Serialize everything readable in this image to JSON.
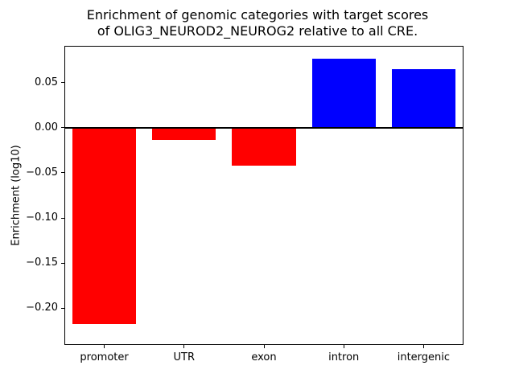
{
  "chart_data": {
    "type": "bar",
    "title": "Enrichment of genomic categories with target scores\nof OLIG3_NEUROD2_NEUROG2 relative to all CRE.",
    "title_lines": [
      "Enrichment of genomic categories with target scores",
      "of OLIG3_NEUROD2_NEUROG2 relative to all CRE."
    ],
    "xlabel": "",
    "ylabel": "Enrichment (log10)",
    "categories": [
      "promoter",
      "UTR",
      "exon",
      "intron",
      "intergenic"
    ],
    "values": [
      -0.218,
      -0.013,
      -0.042,
      0.077,
      0.065
    ],
    "bar_colors": [
      "#ff0000",
      "#ff0000",
      "#ff0000",
      "#0000ff",
      "#0000ff"
    ],
    "negative_color": "#ff0000",
    "positive_color": "#0000ff",
    "ylim": [
      -0.241,
      0.091
    ],
    "yticks": [
      0.05,
      0.0,
      -0.05,
      -0.1,
      -0.15,
      -0.2
    ],
    "ytick_labels": [
      "0.05",
      "0.00",
      "−0.05",
      "−0.10",
      "−0.15",
      "−0.20"
    ],
    "grid": false,
    "zero_line": true,
    "legend": "none"
  }
}
